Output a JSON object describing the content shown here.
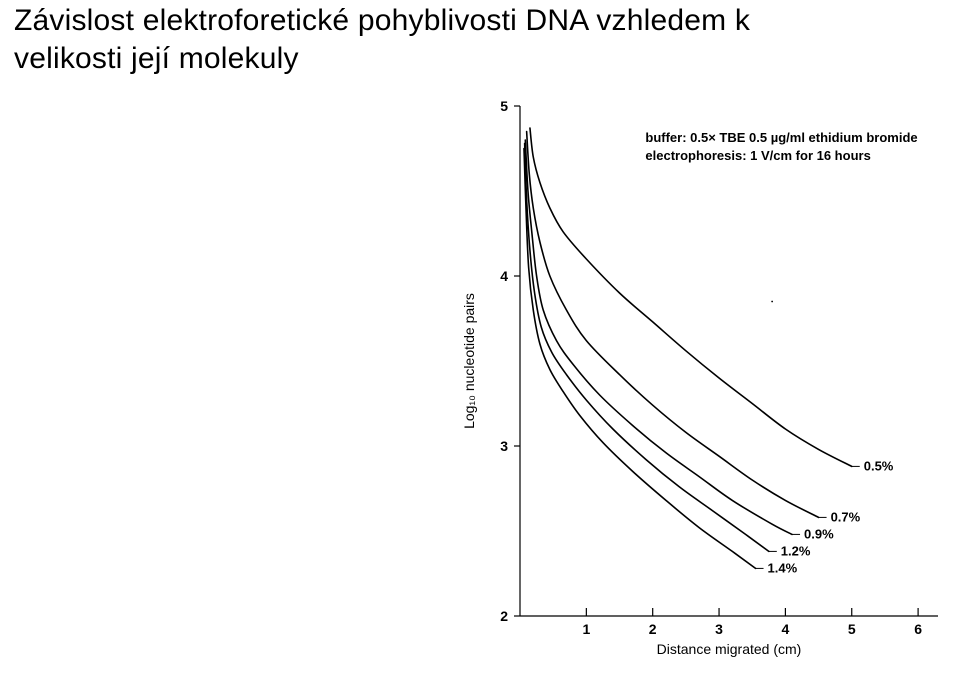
{
  "title_line1": "Závislost elektroforetické pohyblivosti DNA vzhledem k",
  "title_line2": "velikosti její molekuly",
  "chart": {
    "type": "line",
    "background_color": "#ffffff",
    "line_color": "#000000",
    "line_width": 1.6,
    "xlabel": "Distance migrated (cm)",
    "ylabel": "Log₁₀ nucleotide pairs",
    "xlabel_fontsize": 14,
    "ylabel_fontsize": 14,
    "tick_fontsize": 14,
    "tick_fontweight": "700",
    "xlim": [
      0,
      6.3
    ],
    "ylim": [
      2,
      5
    ],
    "xticks": [
      1,
      2,
      3,
      4,
      5,
      6
    ],
    "yticks": [
      2,
      3,
      4,
      5
    ],
    "info_lines": [
      "buffer: 0.5× TBE 0.5 µg/ml ethidium bromide",
      "electrophoresis: 1 V/cm for 16 hours"
    ],
    "info_fontsize": 13,
    "info_fontweight": "700",
    "label_fontsize": 13,
    "frame_top_right_open": true,
    "series": [
      {
        "label": "0.5%",
        "points": [
          [
            0.15,
            4.87
          ],
          [
            0.2,
            4.7
          ],
          [
            0.3,
            4.55
          ],
          [
            0.45,
            4.4
          ],
          [
            0.65,
            4.26
          ],
          [
            1.0,
            4.1
          ],
          [
            1.5,
            3.9
          ],
          [
            2.0,
            3.73
          ],
          [
            2.5,
            3.56
          ],
          [
            3.0,
            3.4
          ],
          [
            3.5,
            3.25
          ],
          [
            4.0,
            3.1
          ],
          [
            4.5,
            2.98
          ],
          [
            5.0,
            2.88
          ]
        ]
      },
      {
        "label": "0.7%",
        "points": [
          [
            0.1,
            4.85
          ],
          [
            0.14,
            4.6
          ],
          [
            0.2,
            4.4
          ],
          [
            0.3,
            4.2
          ],
          [
            0.45,
            4.0
          ],
          [
            0.7,
            3.8
          ],
          [
            1.0,
            3.62
          ],
          [
            1.5,
            3.42
          ],
          [
            2.0,
            3.24
          ],
          [
            2.5,
            3.08
          ],
          [
            3.0,
            2.94
          ],
          [
            3.5,
            2.8
          ],
          [
            4.0,
            2.68
          ],
          [
            4.5,
            2.58
          ]
        ]
      },
      {
        "label": "0.9%",
        "points": [
          [
            0.08,
            4.8
          ],
          [
            0.12,
            4.5
          ],
          [
            0.18,
            4.25
          ],
          [
            0.25,
            4.0
          ],
          [
            0.35,
            3.8
          ],
          [
            0.55,
            3.62
          ],
          [
            0.8,
            3.48
          ],
          [
            1.2,
            3.3
          ],
          [
            1.7,
            3.12
          ],
          [
            2.2,
            2.96
          ],
          [
            2.7,
            2.82
          ],
          [
            3.2,
            2.68
          ],
          [
            3.8,
            2.54
          ],
          [
            4.1,
            2.48
          ]
        ]
      },
      {
        "label": "1.2%",
        "points": [
          [
            0.07,
            4.78
          ],
          [
            0.1,
            4.45
          ],
          [
            0.15,
            4.15
          ],
          [
            0.22,
            3.9
          ],
          [
            0.32,
            3.7
          ],
          [
            0.48,
            3.55
          ],
          [
            0.7,
            3.42
          ],
          [
            1.0,
            3.27
          ],
          [
            1.4,
            3.1
          ],
          [
            1.9,
            2.92
          ],
          [
            2.4,
            2.76
          ],
          [
            2.9,
            2.62
          ],
          [
            3.4,
            2.48
          ],
          [
            3.75,
            2.38
          ]
        ]
      },
      {
        "label": "1.4%",
        "points": [
          [
            0.06,
            4.75
          ],
          [
            0.09,
            4.4
          ],
          [
            0.13,
            4.05
          ],
          [
            0.2,
            3.8
          ],
          [
            0.3,
            3.6
          ],
          [
            0.45,
            3.45
          ],
          [
            0.65,
            3.32
          ],
          [
            0.9,
            3.18
          ],
          [
            1.25,
            3.02
          ],
          [
            1.7,
            2.85
          ],
          [
            2.2,
            2.68
          ],
          [
            2.7,
            2.52
          ],
          [
            3.2,
            2.38
          ],
          [
            3.55,
            2.28
          ]
        ]
      }
    ]
  }
}
